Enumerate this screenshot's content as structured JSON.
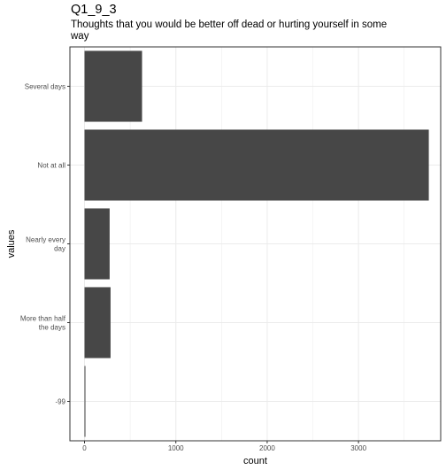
{
  "chart_data": {
    "type": "bar",
    "orientation": "horizontal",
    "title": "Q1_9_3",
    "subtitle": "Thoughts that you would be better off dead or hurting yourself in some way",
    "xlabel": "count",
    "ylabel": "values",
    "categories": [
      "Several days",
      "Not at all",
      "Nearly every day",
      "More than half the days",
      "-99"
    ],
    "category_label_lines": [
      [
        "Several days"
      ],
      [
        "Not at all"
      ],
      [
        "Nearly every",
        "day"
      ],
      [
        "More than half",
        "the days"
      ],
      [
        "-99"
      ]
    ],
    "values": [
      630,
      3770,
      275,
      285,
      8
    ],
    "xlim": [
      -160,
      3900
    ],
    "x_ticks": [
      0,
      1000,
      2000,
      3000
    ],
    "grid": true,
    "bar_color": "#474747",
    "grid_color": "#ebebeb",
    "panel_border_color": "#333333"
  }
}
